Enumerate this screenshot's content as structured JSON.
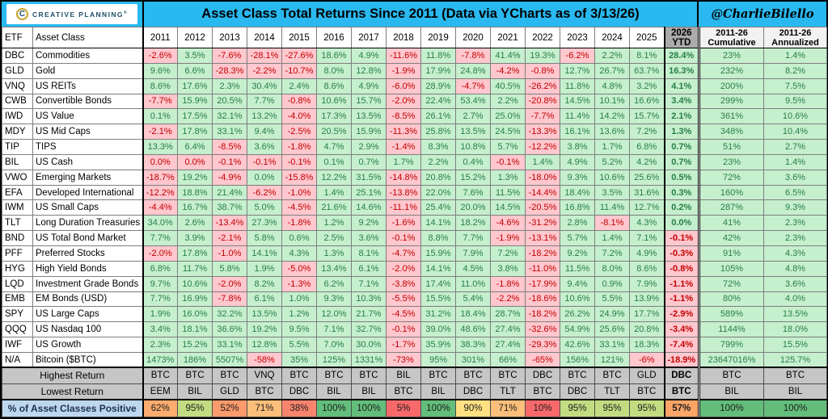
{
  "colors": {
    "accent_cyan": "#29B9F0",
    "logo_navy": "#1C4E68",
    "logo_gold": "#C9A227",
    "pos_bg": "#C6EFCE",
    "pos_text": "#277E46",
    "neg_bg": "#FFC7CE",
    "neg_text": "#C00000",
    "ytd_header_bg": "#ABABAB",
    "cum_header_bg": "#F2F2F2",
    "summary_bg": "#C6C6C6",
    "pct_label_bg": "#BDD7EE",
    "pct_label_text": "#1F3050"
  },
  "banner": {
    "logo_text": "CREATIVE PLANNING",
    "logo_mark": "®",
    "logo_icon": "C",
    "title": "Asset Class Total Returns Since 2011 (Data via YCharts as of 3/13/26)",
    "handle": "@CharlieBilello"
  },
  "chart_data": {
    "type": "table",
    "title": "Asset Class Total Returns Since 2011 (Data via YCharts as of 3/13/26)",
    "columns": {
      "etf": "ETF",
      "asset_class": "Asset Class",
      "years": [
        "2011",
        "2012",
        "2013",
        "2014",
        "2015",
        "2016",
        "2017",
        "2018",
        "2019",
        "2020",
        "2021",
        "2022",
        "2023",
        "2024",
        "2025"
      ],
      "ytd": {
        "line1": "2026",
        "line2": "YTD"
      },
      "cumulative": {
        "line1": "2011-26",
        "line2": "Cumulative"
      },
      "annualized": {
        "line1": "2011-26",
        "line2": "Annualized"
      }
    },
    "rows": [
      {
        "etf": "DBC",
        "name": "Commodities",
        "values": [
          "-2.6%",
          "3.5%",
          "-7.6%",
          "-28.1%",
          "-27.6%",
          "18.6%",
          "4.9%",
          "-11.6%",
          "11.8%",
          "-7.8%",
          "41.4%",
          "19.3%",
          "-6.2%",
          "2.2%",
          "8.1%",
          "28.4%",
          "23%",
          "1.4%"
        ]
      },
      {
        "etf": "GLD",
        "name": "Gold",
        "values": [
          "9.6%",
          "6.6%",
          "-28.3%",
          "-2.2%",
          "-10.7%",
          "8.0%",
          "12.8%",
          "-1.9%",
          "17.9%",
          "24.8%",
          "-4.2%",
          "-0.8%",
          "12.7%",
          "26.7%",
          "63.7%",
          "16.3%",
          "232%",
          "8.2%"
        ]
      },
      {
        "etf": "VNQ",
        "name": "US REITs",
        "values": [
          "8.6%",
          "17.6%",
          "2.3%",
          "30.4%",
          "2.4%",
          "8.6%",
          "4.9%",
          "-6.0%",
          "28.9%",
          "-4.7%",
          "40.5%",
          "-26.2%",
          "11.8%",
          "4.8%",
          "3.2%",
          "4.1%",
          "200%",
          "7.5%"
        ]
      },
      {
        "etf": "CWB",
        "name": "Convertible Bonds",
        "values": [
          "-7.7%",
          "15.9%",
          "20.5%",
          "7.7%",
          "-0.8%",
          "10.6%",
          "15.7%",
          "-2.0%",
          "22.4%",
          "53.4%",
          "2.2%",
          "-20.8%",
          "14.5%",
          "10.1%",
          "16.6%",
          "3.4%",
          "299%",
          "9.5%"
        ]
      },
      {
        "etf": "IWD",
        "name": "US Value",
        "values": [
          "0.1%",
          "17.5%",
          "32.1%",
          "13.2%",
          "-4.0%",
          "17.3%",
          "13.5%",
          "-8.5%",
          "26.1%",
          "2.7%",
          "25.0%",
          "-7.7%",
          "11.4%",
          "14.2%",
          "15.7%",
          "2.1%",
          "361%",
          "10.6%"
        ]
      },
      {
        "etf": "MDY",
        "name": "US Mid Caps",
        "values": [
          "-2.1%",
          "17.8%",
          "33.1%",
          "9.4%",
          "-2.5%",
          "20.5%",
          "15.9%",
          "-11.3%",
          "25.8%",
          "13.5%",
          "24.5%",
          "-13.3%",
          "16.1%",
          "13.6%",
          "7.2%",
          "1.3%",
          "348%",
          "10.4%"
        ]
      },
      {
        "etf": "TIP",
        "name": "TIPS",
        "values": [
          "13.3%",
          "6.4%",
          "-8.5%",
          "3.6%",
          "-1.8%",
          "4.7%",
          "2.9%",
          "-1.4%",
          "8.3%",
          "10.8%",
          "5.7%",
          "-12.2%",
          "3.8%",
          "1.7%",
          "6.8%",
          "0.7%",
          "51%",
          "2.7%"
        ]
      },
      {
        "etf": "BIL",
        "name": "US Cash",
        "values": [
          "0.0%",
          "0.0%",
          "-0.1%",
          "-0.1%",
          "-0.1%",
          "0.1%",
          "0.7%",
          "1.7%",
          "2.2%",
          "0.4%",
          "-0.1%",
          "1.4%",
          "4.9%",
          "5.2%",
          "4.2%",
          "0.7%",
          "23%",
          "1.4%"
        ],
        "neg_zero_indices": [
          0,
          1
        ]
      },
      {
        "etf": "VWO",
        "name": "Emerging Markets",
        "values": [
          "-18.7%",
          "19.2%",
          "-4.9%",
          "0.0%",
          "-15.8%",
          "12.2%",
          "31.5%",
          "-14.8%",
          "20.8%",
          "15.2%",
          "1.3%",
          "-18.0%",
          "9.3%",
          "10.6%",
          "25.6%",
          "0.5%",
          "72%",
          "3.6%"
        ]
      },
      {
        "etf": "EFA",
        "name": "Developed International",
        "values": [
          "-12.2%",
          "18.8%",
          "21.4%",
          "-6.2%",
          "-1.0%",
          "1.4%",
          "25.1%",
          "-13.8%",
          "22.0%",
          "7.6%",
          "11.5%",
          "-14.4%",
          "18.4%",
          "3.5%",
          "31.6%",
          "0.3%",
          "160%",
          "6.5%"
        ]
      },
      {
        "etf": "IWM",
        "name": "US Small Caps",
        "values": [
          "-4.4%",
          "16.7%",
          "38.7%",
          "5.0%",
          "-4.5%",
          "21.6%",
          "14.6%",
          "-11.1%",
          "25.4%",
          "20.0%",
          "14.5%",
          "-20.5%",
          "16.8%",
          "11.4%",
          "12.7%",
          "0.2%",
          "287%",
          "9.3%"
        ]
      },
      {
        "etf": "TLT",
        "name": "Long Duration Treasuries",
        "values": [
          "34.0%",
          "2.6%",
          "-13.4%",
          "27.3%",
          "-1.8%",
          "1.2%",
          "9.2%",
          "-1.6%",
          "14.1%",
          "18.2%",
          "-4.6%",
          "-31.2%",
          "2.8%",
          "-8.1%",
          "4.3%",
          "0.0%",
          "41%",
          "2.3%"
        ]
      },
      {
        "etf": "BND",
        "name": "US Total Bond Market",
        "values": [
          "7.7%",
          "3.9%",
          "-2.1%",
          "5.8%",
          "0.6%",
          "2.5%",
          "3.6%",
          "-0.1%",
          "8.8%",
          "7.7%",
          "-1.9%",
          "-13.1%",
          "5.7%",
          "1.4%",
          "7.1%",
          "-0.1%",
          "42%",
          "2.3%"
        ]
      },
      {
        "etf": "PFF",
        "name": "Preferred Stocks",
        "values": [
          "-2.0%",
          "17.8%",
          "-1.0%",
          "14.1%",
          "4.3%",
          "1.3%",
          "8.1%",
          "-4.7%",
          "15.9%",
          "7.9%",
          "7.2%",
          "-18.2%",
          "9.2%",
          "7.2%",
          "4.9%",
          "-0.3%",
          "91%",
          "4.3%"
        ]
      },
      {
        "etf": "HYG",
        "name": "High Yield Bonds",
        "values": [
          "6.8%",
          "11.7%",
          "5.8%",
          "1.9%",
          "-5.0%",
          "13.4%",
          "6.1%",
          "-2.0%",
          "14.1%",
          "4.5%",
          "3.8%",
          "-11.0%",
          "11.5%",
          "8.0%",
          "8.6%",
          "-0.8%",
          "105%",
          "4.8%"
        ]
      },
      {
        "etf": "LQD",
        "name": "Investment Grade Bonds",
        "values": [
          "9.7%",
          "10.6%",
          "-2.0%",
          "8.2%",
          "-1.3%",
          "6.2%",
          "7.1%",
          "-3.8%",
          "17.4%",
          "11.0%",
          "-1.8%",
          "-17.9%",
          "9.4%",
          "0.9%",
          "7.9%",
          "-1.1%",
          "72%",
          "3.6%"
        ]
      },
      {
        "etf": "EMB",
        "name": "EM Bonds (USD)",
        "values": [
          "7.7%",
          "16.9%",
          "-7.8%",
          "6.1%",
          "1.0%",
          "9.3%",
          "10.3%",
          "-5.5%",
          "15.5%",
          "5.4%",
          "-2.2%",
          "-18.6%",
          "10.6%",
          "5.5%",
          "13.9%",
          "-1.1%",
          "80%",
          "4.0%"
        ]
      },
      {
        "etf": "SPY",
        "name": "US Large Caps",
        "values": [
          "1.9%",
          "16.0%",
          "32.2%",
          "13.5%",
          "1.2%",
          "12.0%",
          "21.7%",
          "-4.5%",
          "31.2%",
          "18.4%",
          "28.7%",
          "-18.2%",
          "26.2%",
          "24.9%",
          "17.7%",
          "-2.9%",
          "589%",
          "13.5%"
        ]
      },
      {
        "etf": "QQQ",
        "name": "US Nasdaq 100",
        "values": [
          "3.4%",
          "18.1%",
          "36.6%",
          "19.2%",
          "9.5%",
          "7.1%",
          "32.7%",
          "-0.1%",
          "39.0%",
          "48.6%",
          "27.4%",
          "-32.6%",
          "54.9%",
          "25.6%",
          "20.8%",
          "-3.4%",
          "1144%",
          "18.0%"
        ]
      },
      {
        "etf": "IWF",
        "name": "US Growth",
        "values": [
          "2.3%",
          "15.2%",
          "33.1%",
          "12.8%",
          "5.5%",
          "7.0%",
          "30.0%",
          "-1.7%",
          "35.9%",
          "38.3%",
          "27.4%",
          "-29.3%",
          "42.6%",
          "33.1%",
          "18.3%",
          "-7.4%",
          "799%",
          "15.5%"
        ]
      },
      {
        "etf": "N/A",
        "name": "Bitcoin ($BTC)",
        "values": [
          "1473%",
          "186%",
          "5507%",
          "-58%",
          "35%",
          "125%",
          "1331%",
          "-73%",
          "95%",
          "301%",
          "66%",
          "-65%",
          "156%",
          "121%",
          "-6%",
          "-18.9%",
          "23647016%",
          "125.7%"
        ]
      }
    ],
    "summary": {
      "highest": {
        "label": "Highest Return",
        "values": [
          "BTC",
          "BTC",
          "BTC",
          "VNQ",
          "BTC",
          "BTC",
          "BTC",
          "BIL",
          "BTC",
          "BTC",
          "BTC",
          "DBC",
          "BTC",
          "BTC",
          "GLD",
          "DBC",
          "BTC",
          "BTC"
        ]
      },
      "lowest": {
        "label": "Lowest Return",
        "values": [
          "EEM",
          "BIL",
          "GLD",
          "BTC",
          "DBC",
          "BIL",
          "BIL",
          "BTC",
          "BIL",
          "DBC",
          "TLT",
          "BTC",
          "DBC",
          "TLT",
          "BTC",
          "BTC",
          "BIL",
          "BIL"
        ]
      },
      "pct_positive": {
        "label": "% of Asset Classes Positive",
        "values": [
          "62%",
          "95%",
          "52%",
          "71%",
          "38%",
          "100%",
          "100%",
          "5%",
          "100%",
          "90%",
          "71%",
          "10%",
          "95%",
          "95%",
          "95%",
          "57%",
          "100%",
          "100%"
        ],
        "cell_colors": [
          "#FCAC6E",
          "#C3DC81",
          "#FA9A6D",
          "#FCBF7B",
          "#F9846E",
          "#63BE7B",
          "#63BE7B",
          "#F8696B",
          "#63BE7B",
          "#FFE182",
          "#FCBF7B",
          "#F8696B",
          "#C3DC81",
          "#C3DC81",
          "#C3DC81",
          "#FBA568",
          "#63BE7B",
          "#63BE7B"
        ]
      }
    }
  }
}
